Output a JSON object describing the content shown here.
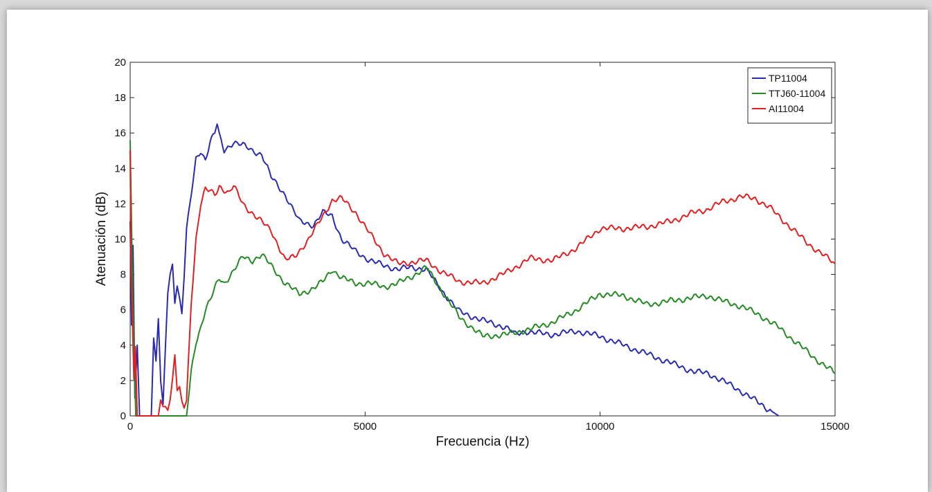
{
  "chart_data": {
    "type": "line",
    "title": "",
    "xlabel": "Frecuencia (Hz)",
    "ylabel": "Atenuación (dB)",
    "xlim": [
      0,
      15000
    ],
    "ylim": [
      0,
      20
    ],
    "xticks": [
      "0",
      "5000",
      "10000",
      "15000"
    ],
    "yticks": [
      "0",
      "2",
      "4",
      "6",
      "8",
      "10",
      "12",
      "14",
      "16",
      "18",
      "20"
    ],
    "grid": false,
    "legend_position": "top-right",
    "series": [
      {
        "name": "TP11004",
        "color": "#2a2ab0",
        "x": [
          0,
          30,
          60,
          100,
          150,
          200,
          450,
          500,
          550,
          600,
          650,
          700,
          800,
          850,
          900,
          950,
          1000,
          1100,
          1150,
          1200,
          1300,
          1400,
          1500,
          1600,
          1700,
          1800,
          1850,
          1900,
          2000,
          2200,
          2400,
          2600,
          2800,
          3000,
          3300,
          3600,
          3900,
          4100,
          4300,
          4500,
          4800,
          5100,
          5400,
          5700,
          6000,
          6300,
          6600,
          7000,
          7500,
          8000,
          8200,
          8400,
          8600,
          9000,
          9500,
          10000,
          10500,
          11000,
          11500,
          12000,
          12300,
          12600,
          13000,
          13400,
          13800
        ],
        "y": [
          11,
          5,
          9.5,
          1,
          4,
          0,
          0,
          4.5,
          3,
          5.5,
          2,
          0.5,
          7,
          8,
          8.5,
          6.5,
          7.5,
          5.8,
          8,
          10.5,
          12.5,
          14.5,
          15,
          14.5,
          15.5,
          16,
          16.5,
          15.8,
          15,
          15.5,
          15.3,
          15,
          14.8,
          13.5,
          12.5,
          11,
          10.8,
          11.5,
          11.3,
          10,
          9.3,
          8.8,
          8.5,
          8.3,
          8.4,
          8.3,
          7.2,
          5.9,
          5.4,
          5,
          4.6,
          4.8,
          4.7,
          4.6,
          4.8,
          4.5,
          4,
          3.5,
          3,
          2.5,
          2.4,
          2,
          1.4,
          0.7,
          0
        ]
      },
      {
        "name": "TTJ60-11004",
        "color": "#238a23",
        "x": [
          0,
          40,
          80,
          120,
          1200,
          1300,
          1400,
          1500,
          1600,
          1700,
          1800,
          1900,
          2000,
          2200,
          2400,
          2600,
          2800,
          3000,
          3300,
          3600,
          3900,
          4100,
          4300,
          4500,
          4800,
          5100,
          5400,
          5700,
          6000,
          6300,
          6600,
          7000,
          7500,
          8000,
          8500,
          9000,
          9500,
          10000,
          10500,
          11000,
          11500,
          12000,
          12300,
          12600,
          13000,
          13400,
          13800,
          14200,
          14600,
          15000
        ],
        "y": [
          15.5,
          9,
          4,
          0,
          0,
          2.5,
          4.2,
          5,
          6,
          6.5,
          7.2,
          7.8,
          7.5,
          8.2,
          9,
          8.8,
          9.1,
          8.5,
          7.5,
          6.9,
          7.2,
          7.6,
          8.3,
          7.8,
          7.5,
          7.5,
          7.3,
          7.5,
          7.9,
          8.4,
          7.2,
          5.6,
          4.5,
          4.6,
          4.9,
          5.3,
          6,
          6.9,
          6.8,
          6.3,
          6.5,
          6.7,
          6.8,
          6.5,
          6.2,
          5.7,
          5,
          4.1,
          3.2,
          2.4
        ]
      },
      {
        "name": "AI11004",
        "color": "#e02020",
        "x": [
          0,
          20,
          50,
          80,
          110,
          150,
          600,
          650,
          700,
          750,
          800,
          850,
          900,
          950,
          1000,
          1050,
          1100,
          1150,
          1200,
          1300,
          1400,
          1500,
          1600,
          1700,
          1800,
          1900,
          2000,
          2100,
          2200,
          2400,
          2700,
          3000,
          3300,
          3500,
          3800,
          4100,
          4300,
          4500,
          4800,
          5100,
          5400,
          5700,
          6000,
          6300,
          6600,
          7000,
          7500,
          8000,
          8500,
          9000,
          9500,
          10000,
          10500,
          11000,
          11500,
          12000,
          12300,
          12600,
          13000,
          13300,
          13600,
          14000,
          14400,
          14800,
          15000
        ],
        "y": [
          15,
          8,
          5,
          2,
          4,
          0,
          0,
          1,
          0.5,
          0.5,
          0.5,
          1,
          2,
          3.5,
          1.5,
          1.5,
          0.7,
          0.5,
          0.8,
          6.5,
          10,
          12,
          12.8,
          12.7,
          12.5,
          13,
          12.8,
          12.6,
          13,
          12,
          11.2,
          10.5,
          8.8,
          9,
          10,
          11.3,
          12.2,
          12.3,
          11.5,
          10.3,
          9.2,
          8.6,
          8.7,
          8.8,
          8.2,
          7.6,
          7.5,
          8.1,
          8.9,
          8.8,
          9.5,
          10.6,
          10.6,
          10.7,
          11,
          11.5,
          11.7,
          12.1,
          12.4,
          12.3,
          11.8,
          10.8,
          9.8,
          9,
          8.6
        ]
      }
    ]
  }
}
